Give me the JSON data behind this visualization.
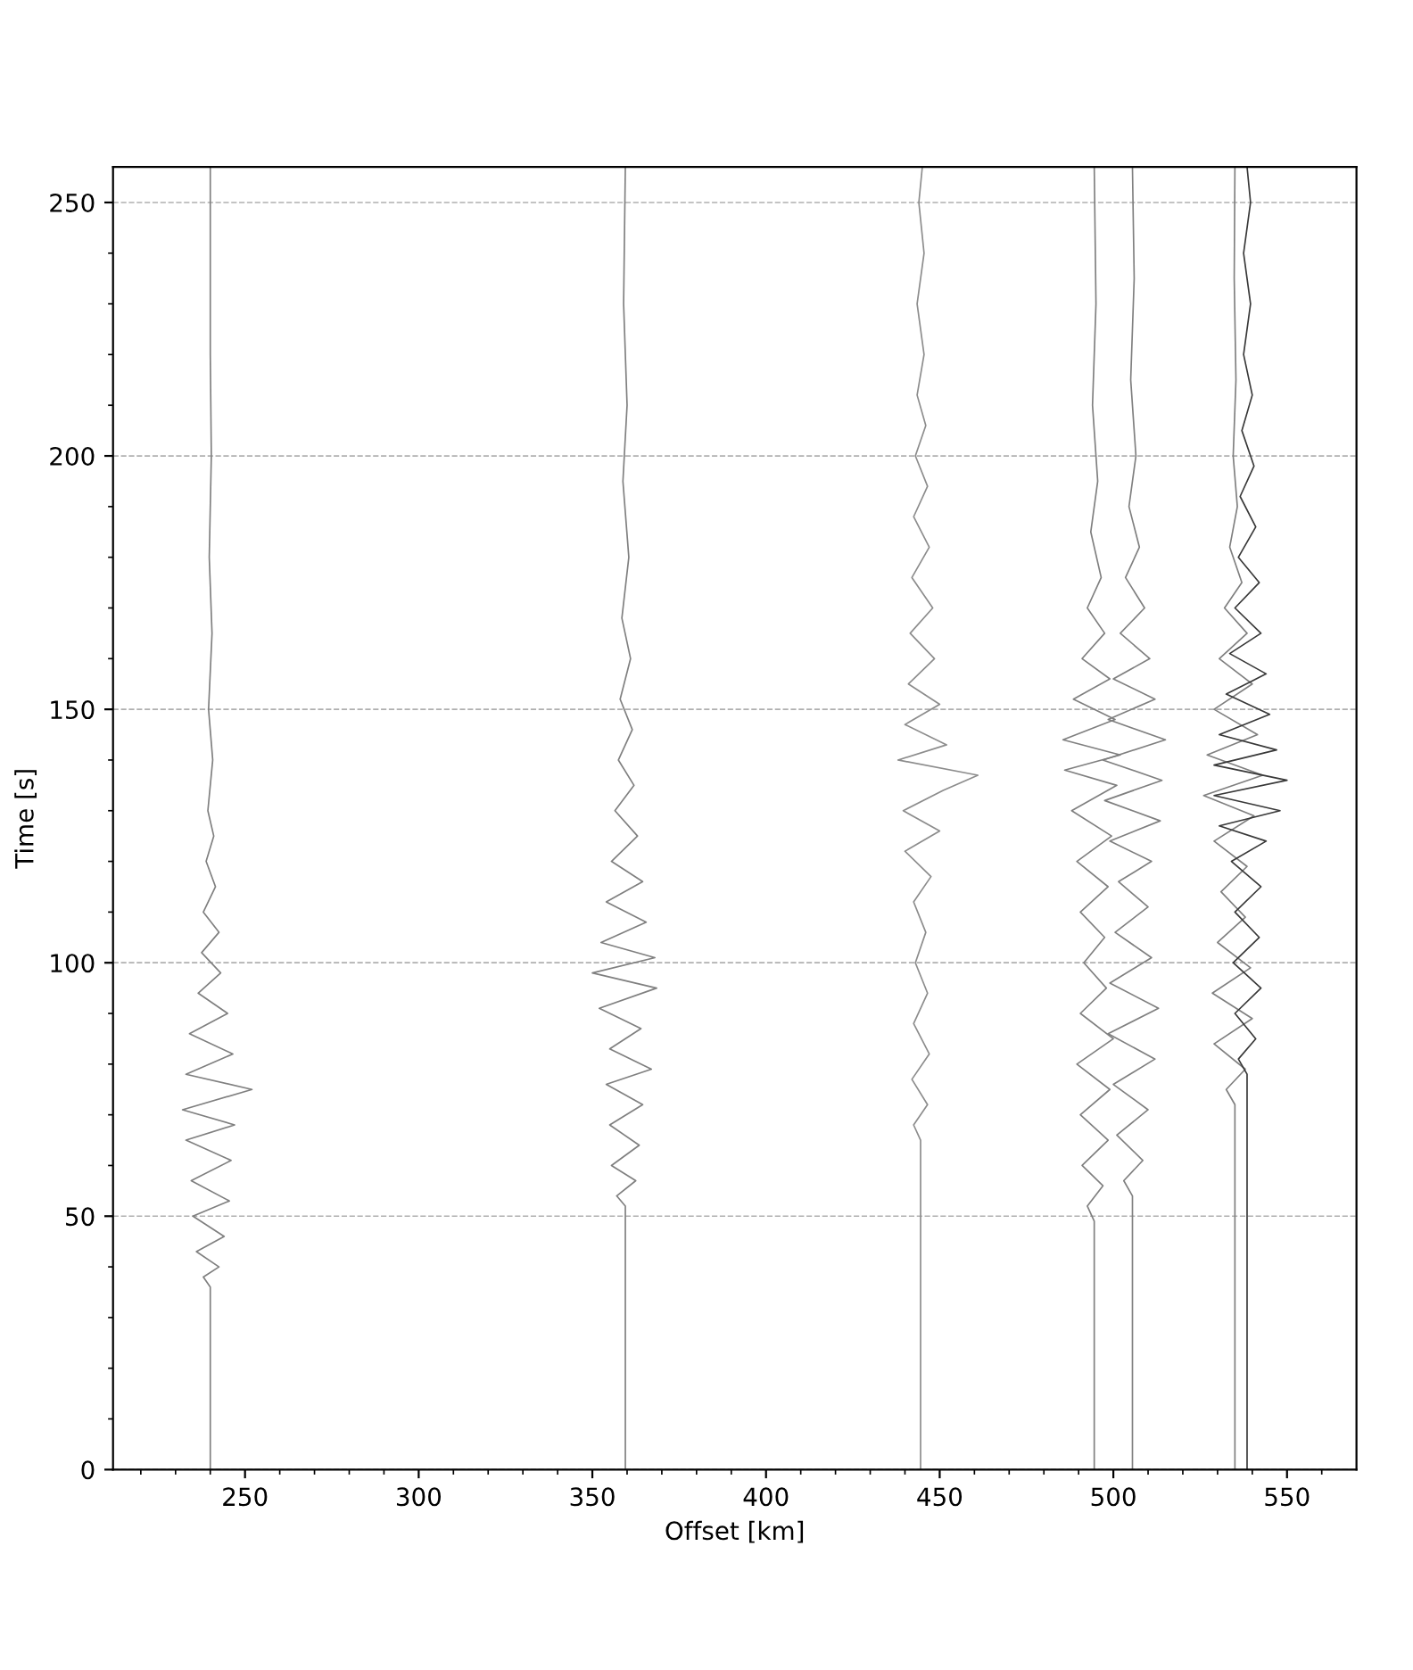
{
  "chart_data": {
    "type": "line",
    "xlabel": "Offset [km]",
    "ylabel": "Time [s]",
    "xlim": [
      212,
      570
    ],
    "ylim": [
      0,
      257
    ],
    "xticks": [
      {
        "value": 220,
        "label": null
      },
      {
        "value": 230,
        "label": null
      },
      {
        "value": 240,
        "label": null
      },
      250,
      {
        "value": 260,
        "label": null
      },
      {
        "value": 270,
        "label": null
      },
      {
        "value": 280,
        "label": null
      },
      {
        "value": 290,
        "label": null
      },
      300,
      {
        "value": 310,
        "label": null
      },
      {
        "value": 320,
        "label": null
      },
      {
        "value": 330,
        "label": null
      },
      {
        "value": 340,
        "label": null
      },
      350,
      {
        "value": 360,
        "label": null
      },
      {
        "value": 370,
        "label": null
      },
      {
        "value": 380,
        "label": null
      },
      {
        "value": 390,
        "label": null
      },
      400,
      {
        "value": 410,
        "label": null
      },
      {
        "value": 420,
        "label": null
      },
      {
        "value": 430,
        "label": null
      },
      {
        "value": 440,
        "label": null
      },
      450,
      {
        "value": 460,
        "label": null
      },
      {
        "value": 470,
        "label": null
      },
      {
        "value": 480,
        "label": null
      },
      {
        "value": 490,
        "label": null
      },
      500,
      {
        "value": 510,
        "label": null
      },
      {
        "value": 520,
        "label": null
      },
      {
        "value": 530,
        "label": null
      },
      {
        "value": 540,
        "label": null
      },
      550,
      {
        "value": 560,
        "label": null
      }
    ],
    "yticks": [
      0,
      {
        "value": 10,
        "label": null
      },
      {
        "value": 20,
        "label": null
      },
      {
        "value": 30,
        "label": null
      },
      {
        "value": 40,
        "label": null
      },
      50,
      {
        "value": 60,
        "label": null
      },
      {
        "value": 70,
        "label": null
      },
      {
        "value": 80,
        "label": null
      },
      {
        "value": 90,
        "label": null
      },
      100,
      {
        "value": 110,
        "label": null
      },
      {
        "value": 120,
        "label": null
      },
      {
        "value": 130,
        "label": null
      },
      {
        "value": 140,
        "label": null
      },
      150,
      {
        "value": 160,
        "label": null
      },
      {
        "value": 170,
        "label": null
      },
      {
        "value": 180,
        "label": null
      },
      {
        "value": 190,
        "label": null
      },
      200,
      {
        "value": 210,
        "label": null
      },
      {
        "value": 220,
        "label": null
      },
      {
        "value": 230,
        "label": null
      },
      {
        "value": 240,
        "label": null
      },
      250
    ],
    "grid": "y",
    "marker": "none",
    "line_style": "solid",
    "series": [
      {
        "color": "#7f7f7f",
        "x": [
          240,
          240,
          238,
          242.5,
          236,
          244,
          235,
          245.5,
          234.5,
          246,
          233,
          247,
          232,
          252,
          233,
          246.5,
          234,
          245,
          236.5,
          243,
          237.5,
          242.5,
          238,
          241.5,
          238.8,
          241,
          239.3,
          240.7,
          239.5,
          240.5,
          239.7,
          240.3,
          240,
          240
        ],
        "values": [
          0,
          36,
          38,
          40,
          43,
          46,
          50,
          53,
          57,
          61,
          65,
          68,
          71,
          75,
          78,
          82,
          86,
          90,
          94,
          98,
          102,
          106,
          110,
          115,
          120,
          125,
          130,
          140,
          150,
          165,
          180,
          200,
          220,
          257
        ]
      },
      {
        "color": "#7f7f7f",
        "x": [
          359.5,
          359.5,
          357,
          362.5,
          355.5,
          363.5,
          355,
          364.5,
          354,
          367,
          355,
          364,
          352,
          368.5,
          350,
          368,
          352.5,
          365.5,
          354,
          364.5,
          355.5,
          363,
          356.5,
          362,
          357.5,
          361.5,
          358,
          361,
          358.5,
          360.5,
          358.8,
          360,
          359,
          359.5
        ],
        "values": [
          0,
          52,
          54,
          57,
          60,
          64,
          68,
          72,
          76,
          79,
          83,
          87,
          91,
          95,
          98,
          101,
          104,
          108,
          112,
          116,
          120,
          125,
          130,
          135,
          140,
          146,
          152,
          160,
          168,
          180,
          195,
          210,
          230,
          257
        ]
      },
      {
        "color": "#8c8c8c",
        "x": [
          444.5,
          444.5,
          442.5,
          446.5,
          442,
          447,
          442.5,
          446.5,
          443,
          446,
          442.5,
          447.5,
          440,
          450,
          439.5,
          451,
          461,
          438,
          452,
          440,
          450,
          441,
          448.5,
          441.5,
          448,
          442,
          447,
          442.5,
          446.5,
          443,
          446,
          443.5,
          445.5,
          443.5,
          445.5,
          444,
          445
        ],
        "values": [
          0,
          65,
          68,
          72,
          77,
          82,
          88,
          94,
          100,
          106,
          112,
          117,
          122,
          126,
          130,
          134,
          137,
          140,
          143,
          147,
          151,
          155,
          160,
          165,
          170,
          176,
          182,
          188,
          194,
          200,
          206,
          212,
          220,
          230,
          240,
          250,
          257
        ]
      },
      {
        "color": "#7f7f7f",
        "x": [
          494.5,
          494.5,
          492.5,
          497,
          491,
          498.5,
          490.5,
          499,
          489.5,
          500,
          490.5,
          498,
          491.5,
          497.5,
          490.5,
          498.5,
          489.5,
          499.5,
          488,
          501,
          486,
          502,
          485.5,
          500.5,
          488.5,
          499,
          491,
          497.5,
          492.5,
          496.5,
          493.5,
          495.5,
          494,
          495,
          494.5
        ],
        "values": [
          0,
          49,
          52,
          56,
          60,
          65,
          70,
          75,
          80,
          85,
          90,
          95,
          100,
          105,
          110,
          115,
          120,
          125,
          130,
          135,
          138,
          141,
          144,
          148,
          152,
          156,
          160,
          165,
          170,
          176,
          185,
          195,
          210,
          230,
          257
        ]
      },
      {
        "color": "#7f7f7f",
        "x": [
          505.5,
          505.5,
          503,
          508.5,
          501,
          510,
          500,
          512,
          498.5,
          513,
          499,
          511,
          500.5,
          510,
          501.5,
          511,
          499,
          513.5,
          497.5,
          514,
          497,
          515,
          498.5,
          512,
          500,
          510.5,
          502,
          509,
          503.5,
          507.5,
          504.5,
          506.5,
          505,
          506,
          505.5
        ],
        "values": [
          0,
          54,
          57,
          61,
          66,
          71,
          76,
          81,
          86,
          91,
          96,
          101,
          106,
          111,
          116,
          120,
          124,
          128,
          132,
          136,
          140,
          144,
          148,
          152,
          156,
          160,
          165,
          170,
          176,
          182,
          190,
          200,
          215,
          235,
          257
        ]
      },
      {
        "color": "#7f7f7f",
        "x": [
          535,
          535,
          532.5,
          538,
          529,
          540,
          528.5,
          539.5,
          530,
          538,
          531,
          538.5,
          529,
          540.5,
          526,
          543,
          527,
          541.5,
          529,
          540,
          530.5,
          538.5,
          532,
          537,
          533.5,
          535.7,
          534.5,
          535.3,
          534.8,
          535
        ],
        "values": [
          0,
          72,
          75,
          79,
          84,
          89,
          94,
          99,
          104,
          109,
          114,
          119,
          124,
          129,
          133,
          137,
          141,
          145,
          150,
          155,
          160,
          165,
          170,
          175,
          182,
          190,
          200,
          215,
          235,
          257
        ]
      },
      {
        "color": "#383838",
        "x": [
          538.5,
          538.5,
          536,
          541,
          535,
          542.5,
          534.5,
          542,
          535,
          542.5,
          534,
          544,
          530.5,
          548,
          529,
          550,
          529,
          547,
          530.5,
          545,
          532.5,
          544,
          533.5,
          542.5,
          535,
          542,
          536,
          541,
          536.5,
          540.5,
          537,
          540,
          537.5,
          539.5,
          537.5,
          539.5,
          538.5
        ],
        "values": [
          0,
          78,
          81,
          85,
          90,
          95,
          100,
          105,
          110,
          115,
          120,
          124,
          127,
          130,
          133,
          136,
          139,
          142,
          145,
          149,
          153,
          157,
          161,
          165,
          170,
          175,
          180,
          186,
          192,
          198,
          205,
          212,
          220,
          230,
          240,
          250,
          257
        ]
      }
    ]
  }
}
